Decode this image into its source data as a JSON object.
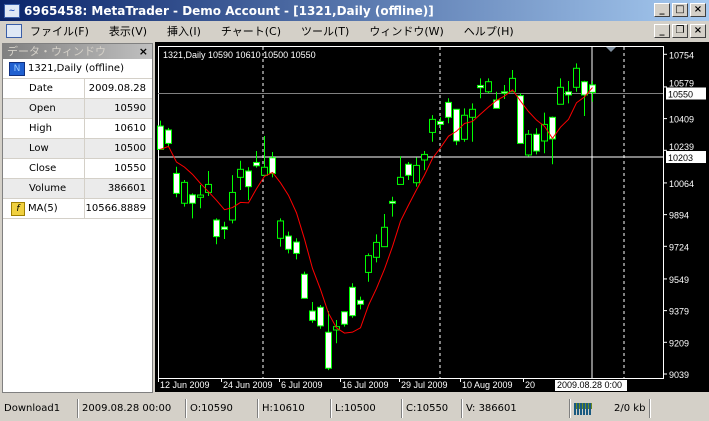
{
  "window": {
    "title": "6965458: MetaTrader - Demo Account - [1321,Daily (offline)]",
    "minimize": "_",
    "maximize": "□",
    "close": "×",
    "restore": "❐"
  },
  "menu": [
    "ファイル(F)",
    "表示(V)",
    "挿入(I)",
    "チャート(C)",
    "ツール(T)",
    "ウィンドウ(W)",
    "ヘルプ(H)"
  ],
  "data_window": {
    "title": "データ・ウィンドウ",
    "close": "×",
    "symbol": "1321,Daily (offline)",
    "rows": [
      {
        "k": "Date",
        "v": "2009.08.28"
      },
      {
        "k": "Open",
        "v": "10590"
      },
      {
        "k": "High",
        "v": "10610"
      },
      {
        "k": "Low",
        "v": "10500"
      },
      {
        "k": "Close",
        "v": "10550"
      },
      {
        "k": "Volume",
        "v": "386601"
      }
    ],
    "ma": {
      "k": "MA(5)",
      "v": "10566.8889"
    }
  },
  "chart_header": "1321,Daily  10590 10610 10500 10550",
  "chart_data": {
    "type": "candlestick",
    "symbol": "1321",
    "timeframe": "Daily",
    "ylim": [
      9039,
      10754
    ],
    "y_ticks": [
      10754,
      10579,
      10409,
      10239,
      10064,
      9894,
      9724,
      9549,
      9379,
      9209,
      9039
    ],
    "x_ticks": [
      "12 Jun 2009",
      "24 Jun 2009",
      "6 Jul 2009",
      "16 Jul 2009",
      "29 Jul 2009",
      "10 Aug 2009",
      "20"
    ],
    "crosshair": {
      "time": "2009.08.28 0:00",
      "price": "10203"
    },
    "bid_label": "10550",
    "indicator": "MA(5)",
    "colors": {
      "bull_outline": "#00ff00",
      "bear_fill": "#ffffff",
      "ma": "#ff0000",
      "grid_sep": "#ffffff",
      "bid_line": "#808080"
    },
    "ohlc": [
      [
        10369,
        10398,
        10244,
        10244
      ],
      [
        10348,
        10359,
        10258,
        10276
      ],
      [
        10115,
        10151,
        9987,
        10008
      ],
      [
        9955,
        10080,
        9937,
        10067
      ],
      [
        10000,
        10008,
        9874,
        9955
      ],
      [
        9987,
        10053,
        9928,
        9999
      ],
      [
        10013,
        10128,
        9994,
        10056
      ],
      [
        9865,
        9874,
        9735,
        9776
      ],
      [
        9828,
        9856,
        9763,
        9815
      ],
      [
        9865,
        10106,
        9847,
        10013
      ],
      [
        10094,
        10183,
        10026,
        10137
      ],
      [
        10128,
        10148,
        9972,
        10044
      ],
      [
        10174,
        10235,
        10146,
        10156
      ],
      [
        10105,
        10316,
        10105,
        10148
      ],
      [
        10199,
        10230,
        10094,
        10115
      ],
      [
        9767,
        9874,
        9722,
        9860
      ],
      [
        9779,
        9803,
        9686,
        9708
      ],
      [
        9747,
        9767,
        9654,
        9686
      ],
      [
        9574,
        9588,
        9445,
        9445
      ],
      [
        9377,
        9425,
        9314,
        9327
      ],
      [
        9397,
        9409,
        9282,
        9297
      ],
      [
        9263,
        9377,
        9060,
        9070
      ],
      [
        9275,
        9329,
        9204,
        9293
      ],
      [
        9373,
        9375,
        9293,
        9306
      ],
      [
        9504,
        9526,
        9341,
        9352
      ],
      [
        9434,
        9454,
        9386,
        9413
      ],
      [
        9584,
        9686,
        9534,
        9674
      ],
      [
        9665,
        9788,
        9638,
        9745
      ],
      [
        9722,
        9897,
        9722,
        9826
      ],
      [
        9965,
        9990,
        9883,
        9955
      ],
      [
        10056,
        10208,
        10056,
        10094
      ],
      [
        10164,
        10176,
        10080,
        10105
      ],
      [
        10065,
        10200,
        10044,
        10158
      ],
      [
        10187,
        10235,
        10133,
        10217
      ],
      [
        10335,
        10428,
        10285,
        10405
      ],
      [
        10394,
        10416,
        10348,
        10378
      ],
      [
        10496,
        10518,
        10384,
        10416
      ],
      [
        10459,
        10459,
        10267,
        10289
      ],
      [
        10298,
        10464,
        10285,
        10427
      ],
      [
        10416,
        10491,
        10285,
        10459
      ],
      [
        10587,
        10625,
        10518,
        10575
      ],
      [
        10553,
        10625,
        10545,
        10607
      ],
      [
        10509,
        10553,
        10464,
        10464
      ],
      [
        10553,
        10589,
        10514,
        10545
      ],
      [
        10553,
        10670,
        10553,
        10625
      ],
      [
        10532,
        10545,
        10276,
        10276
      ],
      [
        10214,
        10348,
        10205,
        10325
      ],
      [
        10325,
        10357,
        10217,
        10235
      ],
      [
        10289,
        10441,
        10223,
        10378
      ],
      [
        10416,
        10420,
        10164,
        10300
      ],
      [
        10486,
        10625,
        10486,
        10577
      ],
      [
        10553,
        10611,
        10491,
        10536
      ],
      [
        10577,
        10705,
        10553,
        10679
      ],
      [
        10607,
        10612,
        10423,
        10536
      ],
      [
        10590,
        10610,
        10500,
        10550
      ]
    ]
  },
  "status": {
    "profile": "Download1",
    "time": "2009.08.28 00:00",
    "open": "O:10590",
    "high": "H:10610",
    "low": "L:10500",
    "close": "C:10550",
    "volume": "V: 386601",
    "traffic": "2/0 kb"
  }
}
